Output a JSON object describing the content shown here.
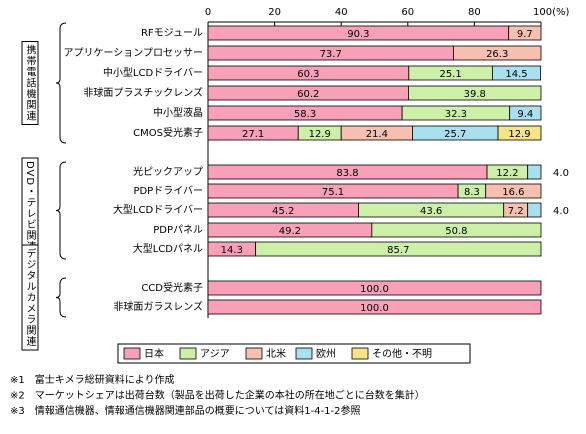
{
  "chart_data": {
    "type": "stacked-bar-horizontal",
    "categories": [
      "RFモジュール",
      "アプリケーションプロセッサー",
      "中小型LCDドライバー",
      "非球面プラスチックレンズ",
      "中小型液晶",
      "CMOS受光素子",
      "光ピックアップ",
      "PDPドライバー",
      "大型LCDドライバー",
      "PDPパネル",
      "大型LCDパネル",
      "CCD受光素子",
      "非球面ガラスレンズ"
    ],
    "groups": [
      {
        "label": "携帯電話機関連",
        "rows": [
          0,
          5
        ]
      },
      {
        "label": "DVD・テレビ関連",
        "rows": [
          6,
          10
        ]
      },
      {
        "label": "デジタルカメラ関連",
        "rows": [
          11,
          12
        ]
      }
    ],
    "series": [
      {
        "name": "日本",
        "color": "#f8a0b8",
        "values": [
          90.3,
          73.7,
          60.3,
          60.2,
          58.3,
          27.1,
          83.8,
          75.1,
          45.2,
          49.2,
          14.3,
          100,
          100
        ],
        "value_labels": [
          "90.3",
          "73.7",
          "60.3",
          "60.2",
          "58.3",
          "27.1",
          "83.8",
          "75.1",
          "45.2",
          "49.2",
          "14.3",
          "100.0",
          "100.0"
        ]
      },
      {
        "name": "アジア",
        "color": "#ccf0a8",
        "values": [
          null,
          null,
          25.1,
          39.8,
          32.3,
          12.9,
          12.2,
          8.3,
          43.6,
          50.8,
          85.7,
          null,
          null
        ],
        "value_labels": [
          null,
          null,
          "25.1",
          "39.8",
          "32.3",
          "12.9",
          "12.2",
          "8.3",
          "43.6",
          "50.8",
          "85.7",
          null,
          null
        ]
      },
      {
        "name": "北米",
        "color": "#f8c0b0",
        "values": [
          9.7,
          26.3,
          null,
          null,
          null,
          21.4,
          null,
          16.6,
          7.2,
          null,
          null,
          null,
          null
        ],
        "value_labels": [
          "9.7",
          "26.3",
          null,
          null,
          null,
          "21.4",
          null,
          "16.6",
          "7.2",
          null,
          null,
          null,
          null
        ]
      },
      {
        "name": "欧州",
        "color": "#a8e0f0",
        "values": [
          null,
          null,
          14.5,
          null,
          9.4,
          25.7,
          4,
          null,
          4,
          null,
          null,
          null,
          null
        ],
        "value_labels": [
          null,
          null,
          "14.5",
          null,
          "9.4",
          "25.7",
          "4.0",
          null,
          "4.0",
          null,
          null,
          null,
          null
        ]
      },
      {
        "name": "その他・不明",
        "color": "#f8e488",
        "values": [
          null,
          null,
          null,
          null,
          null,
          12.9,
          null,
          null,
          null,
          null,
          null,
          null,
          null
        ],
        "value_labels": [
          null,
          null,
          null,
          null,
          null,
          "12.9",
          null,
          null,
          null,
          null,
          null,
          null,
          null
        ]
      }
    ],
    "xlim": [
      0,
      100
    ],
    "xticks": [
      0,
      20,
      40,
      60,
      80,
      {
        "value": 100,
        "label": "100(%)"
      }
    ],
    "grid": false,
    "notes": [
      "※1　富士キメラ総研資料により作成",
      "※2　マーケットシェアは出荷台数（製品を出荷した企業の本社の所在地ごとに台数を集計）",
      "※3　情報通信機器、情報通信機器関連部品の概要については資料1-4-1-2参照"
    ]
  }
}
